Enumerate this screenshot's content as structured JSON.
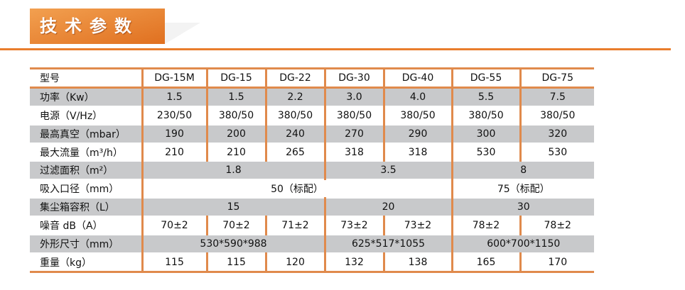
{
  "title": "技术参数",
  "colors": {
    "accent": "#e97d2c",
    "row_shade": "#c8c9cb"
  },
  "header_row": {
    "label": "型号",
    "models": [
      "DG-15M",
      "DG-15",
      "DG-22",
      "DG-30",
      "DG-40",
      "DG-55",
      "DG-75"
    ]
  },
  "rows": [
    {
      "label": "功率（Kw）",
      "cells": [
        {
          "v": "1.5",
          "span": 1
        },
        {
          "v": "1.5",
          "span": 1
        },
        {
          "v": "2.2",
          "span": 1
        },
        {
          "v": "3.0",
          "span": 1
        },
        {
          "v": "4.0",
          "span": 1
        },
        {
          "v": "5.5",
          "span": 1
        },
        {
          "v": "7.5",
          "span": 1
        }
      ]
    },
    {
      "label": "电源（V/Hz）",
      "cells": [
        {
          "v": "230/50",
          "span": 1
        },
        {
          "v": "380/50",
          "span": 1
        },
        {
          "v": "380/50",
          "span": 1
        },
        {
          "v": "380/50",
          "span": 1
        },
        {
          "v": "380/50",
          "span": 1
        },
        {
          "v": "380/50",
          "span": 1
        },
        {
          "v": "380/50",
          "span": 1
        }
      ]
    },
    {
      "label": "最高真空（mbar）",
      "cells": [
        {
          "v": "190",
          "span": 1
        },
        {
          "v": "200",
          "span": 1
        },
        {
          "v": "240",
          "span": 1
        },
        {
          "v": "270",
          "span": 1
        },
        {
          "v": "290",
          "span": 1
        },
        {
          "v": "300",
          "span": 1
        },
        {
          "v": "320",
          "span": 1
        }
      ]
    },
    {
      "label": "最大流量（m³/h）",
      "cells": [
        {
          "v": "210",
          "span": 1
        },
        {
          "v": "210",
          "span": 1
        },
        {
          "v": "265",
          "span": 1
        },
        {
          "v": "318",
          "span": 1
        },
        {
          "v": "318",
          "span": 1
        },
        {
          "v": "530",
          "span": 1
        },
        {
          "v": "530",
          "span": 1
        }
      ]
    },
    {
      "label": "过滤面积（m²）",
      "cells": [
        {
          "v": "1.8",
          "span": 3
        },
        {
          "v": "3.5",
          "span": 2
        },
        {
          "v": "8",
          "span": 2
        }
      ]
    },
    {
      "label": "吸入口径（mm）",
      "cells": [
        {
          "v": "50（标配）",
          "span": 5
        },
        {
          "v": "75（标配）",
          "span": 2
        }
      ]
    },
    {
      "label": "集尘箱容积（L）",
      "cells": [
        {
          "v": "15",
          "span": 3
        },
        {
          "v": "20",
          "span": 2
        },
        {
          "v": "30",
          "span": 2
        }
      ]
    },
    {
      "label": "噪音 dB（A）",
      "cells": [
        {
          "v": "70±2",
          "span": 1
        },
        {
          "v": "70±2",
          "span": 1
        },
        {
          "v": "71±2",
          "span": 1
        },
        {
          "v": "73±2",
          "span": 1
        },
        {
          "v": "73±2",
          "span": 1
        },
        {
          "v": "78±2",
          "span": 1
        },
        {
          "v": "78±2",
          "span": 1
        }
      ]
    },
    {
      "label": "外形尺寸（mm）",
      "cells": [
        {
          "v": "530*590*988",
          "span": 3
        },
        {
          "v": "625*517*1055",
          "span": 2
        },
        {
          "v": "600*700*1150",
          "span": 2
        }
      ]
    },
    {
      "label": "重量（kg）",
      "cells": [
        {
          "v": "115",
          "span": 1
        },
        {
          "v": "115",
          "span": 1
        },
        {
          "v": "120",
          "span": 1
        },
        {
          "v": "132",
          "span": 1
        },
        {
          "v": "138",
          "span": 1
        },
        {
          "v": "165",
          "span": 1
        },
        {
          "v": "170",
          "span": 1
        }
      ]
    }
  ]
}
